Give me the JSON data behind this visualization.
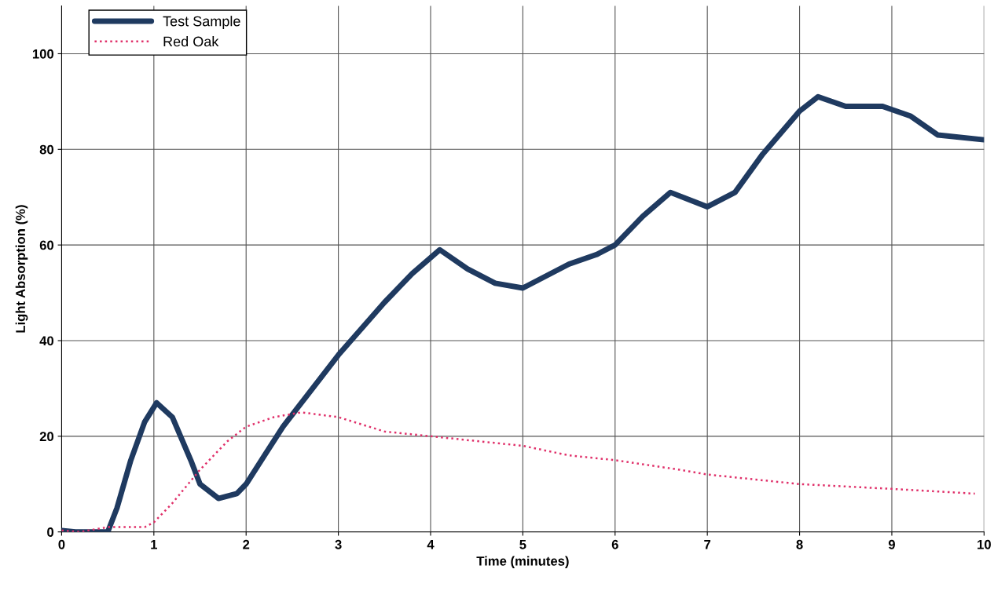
{
  "chart_data": {
    "type": "line",
    "xlabel": "Time (minutes)",
    "ylabel": "Light Absorption (%)",
    "xlim": [
      0,
      10
    ],
    "xticks": [
      0,
      1,
      2,
      3,
      4,
      5,
      6,
      7,
      8,
      9,
      10
    ],
    "ylim": [
      0,
      110
    ],
    "yticks": [
      0,
      20,
      40,
      60,
      80,
      100
    ],
    "grid": true,
    "legend": "top left",
    "marker": "none",
    "series": [
      {
        "name": "Test Sample",
        "color": "#1f3a60",
        "line_style": "solid",
        "x": [
          0,
          0.15,
          0.5,
          0.6,
          0.75,
          0.9,
          1.03,
          1.2,
          1.4,
          1.5,
          1.7,
          1.9,
          2.0,
          2.2,
          2.4,
          2.6,
          3.0,
          3.5,
          3.8,
          4.1,
          4.4,
          4.7,
          5.0,
          5.5,
          5.8,
          6.0,
          6.3,
          6.6,
          7.0,
          7.3,
          7.6,
          8.0,
          8.2,
          8.5,
          8.9,
          9.2,
          9.5,
          10
        ],
        "values": [
          0.3,
          0,
          0,
          5,
          15,
          23,
          27,
          24,
          15,
          10,
          7,
          8,
          10,
          16,
          22,
          27,
          37,
          48,
          54,
          59,
          55,
          52,
          51,
          56,
          58,
          60,
          66,
          71,
          68,
          71,
          79,
          88,
          91,
          89,
          89,
          87,
          83,
          82
        ]
      },
      {
        "name": "Red Oak",
        "color": "#e0306a",
        "line_style": "dotted",
        "x": [
          0,
          0.2,
          0.5,
          0.9,
          1.0,
          1.2,
          1.5,
          1.8,
          2.0,
          2.3,
          2.6,
          3.0,
          3.5,
          4.0,
          4.5,
          5.0,
          5.5,
          6.0,
          6.7,
          7.0,
          8.0,
          9.0,
          9.9
        ],
        "values": [
          0.3,
          0,
          1,
          1,
          2,
          6,
          13,
          19,
          22,
          24,
          25,
          24,
          21,
          20,
          19,
          18,
          16,
          15,
          13,
          12,
          10,
          9,
          8
        ]
      }
    ]
  }
}
